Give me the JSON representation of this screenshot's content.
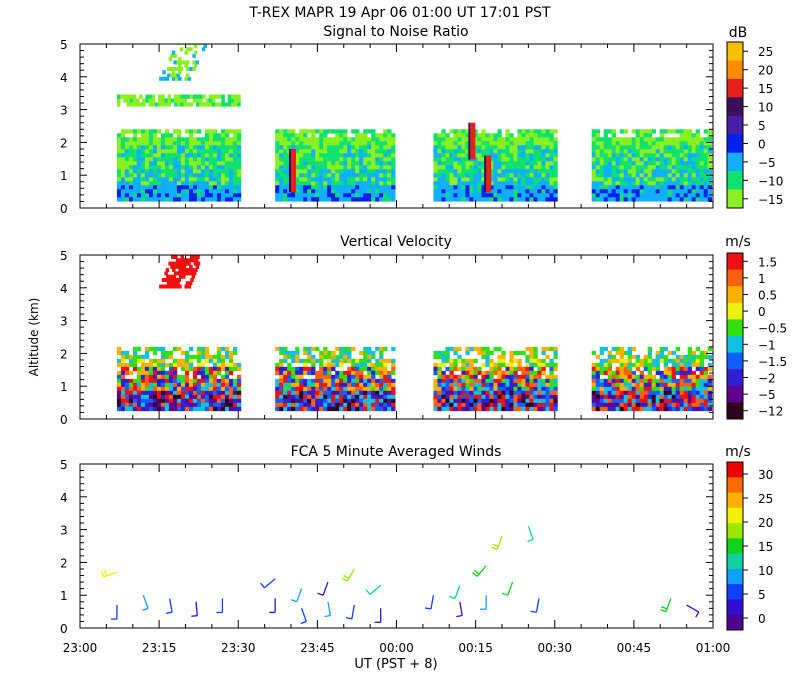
{
  "header": {
    "title": "T-REX   MAPR 19 Apr 06   01:00 UT   17:01   PST",
    "xlabel": "UT  (PST + 8)",
    "ylabel": "Altitude  (km)"
  },
  "chart_data": [
    {
      "type": "heatmap",
      "title": "Signal to Noise Ratio",
      "ylim": [
        0,
        5
      ],
      "yticks": [
        "0",
        "1",
        "2",
        "3",
        "4",
        "5"
      ],
      "unit": "dB",
      "colorbar_labels": [
        "25",
        "20",
        "15",
        "10",
        "5",
        "0",
        "−5",
        "−10",
        "−15"
      ],
      "colors": [
        "#f5c000",
        "#ff8c00",
        "#e8201a",
        "#3c0f5a",
        "#4820a8",
        "#0020f0",
        "#10b0ff",
        "#10e070",
        "#88f020"
      ],
      "segments": [
        {
          "start": "23:07",
          "end": "23:30",
          "ymin": 0.3,
          "ymax": 2.4
        },
        {
          "start": "23:37",
          "end": "23:59",
          "ymin": 0.3,
          "ymax": 2.4
        },
        {
          "start": "00:07",
          "end": "00:30",
          "ymin": 0.3,
          "ymax": 2.4
        },
        {
          "start": "00:37",
          "end": "00:59",
          "ymin": 0.3,
          "ymax": 2.4
        }
      ]
    },
    {
      "type": "heatmap",
      "title": "Vertical Velocity",
      "ylim": [
        0,
        5
      ],
      "yticks": [
        "0",
        "1",
        "2",
        "3",
        "4",
        "5"
      ],
      "unit": "m/s",
      "colorbar_labels": [
        "1.5",
        "1",
        "0.5",
        "0",
        "−0.5",
        "−1",
        "−1.5",
        "−2",
        "−5",
        "−12"
      ],
      "colors": [
        "#f01010",
        "#ff6010",
        "#ffb000",
        "#f0f010",
        "#30e010",
        "#10c0e0",
        "#1060ff",
        "#3020d0",
        "#600090",
        "#300020"
      ],
      "segments": [
        {
          "start": "23:07",
          "end": "23:30",
          "ymin": 0.3,
          "ymax": 2.2
        },
        {
          "start": "23:37",
          "end": "23:59",
          "ymin": 0.3,
          "ymax": 2.2
        },
        {
          "start": "00:07",
          "end": "00:30",
          "ymin": 0.3,
          "ymax": 2.2
        },
        {
          "start": "00:37",
          "end": "00:59",
          "ymin": 0.3,
          "ymax": 2.2
        }
      ]
    },
    {
      "type": "scatter",
      "title": "FCA 5 Minute Averaged Winds",
      "ylim": [
        0,
        5
      ],
      "yticks": [
        "0",
        "1",
        "2",
        "3",
        "4",
        "5"
      ],
      "unit": "m/s",
      "colorbar_labels": [
        "30",
        "25",
        "20",
        "15",
        "10",
        "5",
        "0"
      ],
      "colors": [
        "#ee0000",
        "#ff6a00",
        "#ffb000",
        "#f0f000",
        "#9ae800",
        "#10d020",
        "#10d0a0",
        "#10a0ff",
        "#1040ff",
        "#3010d0",
        "#500090"
      ],
      "barbs": [
        {
          "t": "23:07",
          "alt": 0.7,
          "spd": 5,
          "dir": 180
        },
        {
          "t": "23:07",
          "alt": 1.7,
          "spd": 20,
          "dir": 250
        },
        {
          "t": "23:12",
          "alt": 1.0,
          "spd": 8,
          "dir": 160
        },
        {
          "t": "23:17",
          "alt": 0.9,
          "spd": 6,
          "dir": 170
        },
        {
          "t": "23:22",
          "alt": 0.8,
          "spd": 4,
          "dir": 175
        },
        {
          "t": "23:27",
          "alt": 0.9,
          "spd": 5,
          "dir": 180
        },
        {
          "t": "23:37",
          "alt": 1.5,
          "spd": 6,
          "dir": 230
        },
        {
          "t": "23:37",
          "alt": 0.9,
          "spd": 3,
          "dir": 180
        },
        {
          "t": "23:42",
          "alt": 1.2,
          "spd": 10,
          "dir": 200
        },
        {
          "t": "23:42",
          "alt": 0.6,
          "spd": 5,
          "dir": 160
        },
        {
          "t": "23:47",
          "alt": 1.4,
          "spd": 4,
          "dir": 200
        },
        {
          "t": "23:47",
          "alt": 0.8,
          "spd": 9,
          "dir": 170
        },
        {
          "t": "23:52",
          "alt": 1.8,
          "spd": 17,
          "dir": 210
        },
        {
          "t": "23:52",
          "alt": 0.7,
          "spd": 6,
          "dir": 190
        },
        {
          "t": "23:57",
          "alt": 1.3,
          "spd": 12,
          "dir": 230
        },
        {
          "t": "23:57",
          "alt": 0.6,
          "spd": 3,
          "dir": 180
        },
        {
          "t": "00:07",
          "alt": 1.0,
          "spd": 7,
          "dir": 190
        },
        {
          "t": "00:12",
          "alt": 1.3,
          "spd": 11,
          "dir": 200
        },
        {
          "t": "00:12",
          "alt": 0.8,
          "spd": 4,
          "dir": 170
        },
        {
          "t": "00:17",
          "alt": 1.9,
          "spd": 16,
          "dir": 220
        },
        {
          "t": "00:17",
          "alt": 1.0,
          "spd": 8,
          "dir": 180
        },
        {
          "t": "00:20",
          "alt": 2.8,
          "spd": 19,
          "dir": 200
        },
        {
          "t": "00:22",
          "alt": 1.4,
          "spd": 14,
          "dir": 200
        },
        {
          "t": "00:25",
          "alt": 3.1,
          "spd": 12,
          "dir": 160
        },
        {
          "t": "00:27",
          "alt": 0.9,
          "spd": 5,
          "dir": 190
        },
        {
          "t": "00:52",
          "alt": 0.9,
          "spd": 15,
          "dir": 200
        },
        {
          "t": "00:55",
          "alt": 0.7,
          "spd": 2,
          "dir": 120
        }
      ]
    }
  ],
  "time_axis": {
    "ticks": [
      "23:00",
      "23:15",
      "23:30",
      "23:45",
      "00:00",
      "00:15",
      "00:30",
      "00:45",
      "01:00"
    ],
    "range_minutes": [
      0,
      120
    ]
  }
}
